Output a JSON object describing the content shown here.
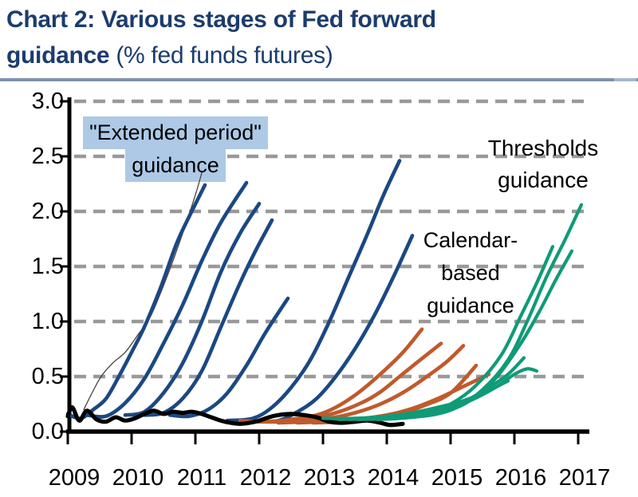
{
  "title": {
    "line1_bold": "Chart 2: Various stages of Fed forward",
    "line2_bold": "guidance",
    "line2_regular": " (% fed funds futures)"
  },
  "annotations": {
    "extended": {
      "line1": "\"Extended period\"",
      "line2": "guidance"
    },
    "thresholds": {
      "line1": "Thresholds",
      "line2": "guidance"
    },
    "calendar": {
      "line1": "Calendar-",
      "line2": "based",
      "line3": "guidance"
    }
  },
  "colors": {
    "title_blue": "#1b3c6d",
    "underline": "#7e91ad",
    "highlight": "#adc9e6",
    "grid": "#999999",
    "axis": "#000000",
    "extended_navy": "#1b4883",
    "calendar_orange": "#c05a2b",
    "thresholds_teal": "#0f9b77",
    "actual_black": "#000000"
  },
  "chart_data": {
    "type": "line",
    "title": "Chart 2: Various stages of Fed forward guidance",
    "unit": "% fed funds futures",
    "xlabel": "",
    "ylabel": "",
    "xlim": [
      2009,
      2017.15
    ],
    "ylim": [
      0.0,
      3.0
    ],
    "grid": "horizontal-dashed",
    "legend_position": "none",
    "x_ticks": [
      "2009",
      "2010",
      "2011",
      "2012",
      "2013",
      "2014",
      "2015",
      "2016",
      "2017"
    ],
    "x_tick_years": [
      2009,
      2010,
      2011,
      2012,
      2013,
      2014,
      2015,
      2016,
      2017
    ],
    "y_ticks": [
      "3.0",
      "2.5",
      "2.0",
      "1.5",
      "1.0",
      "0.5",
      "0.0"
    ],
    "y_tick_values": [
      3.0,
      2.5,
      2.0,
      1.5,
      1.0,
      0.5,
      0.0
    ],
    "series": [
      {
        "name": "futures_2009_thin",
        "group": "extended-period",
        "color": "#4a4038",
        "width": 1.3,
        "points": [
          [
            2009.25,
            0.2
          ],
          [
            2009.5,
            0.48
          ],
          [
            2009.7,
            0.62
          ],
          [
            2009.9,
            0.72
          ],
          [
            2010.1,
            0.88
          ],
          [
            2010.3,
            1.05
          ],
          [
            2010.55,
            1.4
          ],
          [
            2010.8,
            1.8
          ],
          [
            2011.0,
            2.15
          ],
          [
            2011.1,
            2.35
          ]
        ]
      },
      {
        "name": "futures_extended_1",
        "group": "extended-period",
        "color": "#1b4883",
        "width": 4.6,
        "points": [
          [
            2009.0,
            0.16
          ],
          [
            2009.2,
            0.12
          ],
          [
            2009.4,
            0.2
          ],
          [
            2009.6,
            0.3
          ],
          [
            2009.8,
            0.5
          ],
          [
            2010.0,
            0.72
          ],
          [
            2010.2,
            0.95
          ],
          [
            2010.45,
            1.3
          ],
          [
            2010.7,
            1.7
          ],
          [
            2010.9,
            1.95
          ],
          [
            2011.15,
            2.24
          ]
        ]
      },
      {
        "name": "futures_extended_2",
        "group": "extended-period",
        "color": "#1b4883",
        "width": 4.6,
        "points": [
          [
            2009.3,
            0.15
          ],
          [
            2009.6,
            0.14
          ],
          [
            2009.9,
            0.26
          ],
          [
            2010.2,
            0.48
          ],
          [
            2010.5,
            0.8
          ],
          [
            2010.8,
            1.15
          ],
          [
            2011.1,
            1.55
          ],
          [
            2011.4,
            1.9
          ],
          [
            2011.8,
            2.26
          ]
        ]
      },
      {
        "name": "futures_extended_3",
        "group": "extended-period",
        "color": "#1b4883",
        "width": 4.6,
        "points": [
          [
            2009.9,
            0.15
          ],
          [
            2010.2,
            0.18
          ],
          [
            2010.5,
            0.35
          ],
          [
            2010.8,
            0.62
          ],
          [
            2011.1,
            1.0
          ],
          [
            2011.4,
            1.45
          ],
          [
            2011.7,
            1.8
          ],
          [
            2012.0,
            2.07
          ]
        ]
      },
      {
        "name": "futures_extended_4",
        "group": "extended-period",
        "color": "#1b4883",
        "width": 4.6,
        "points": [
          [
            2010.2,
            0.15
          ],
          [
            2010.5,
            0.17
          ],
          [
            2010.8,
            0.3
          ],
          [
            2011.1,
            0.55
          ],
          [
            2011.4,
            0.95
          ],
          [
            2011.7,
            1.35
          ],
          [
            2011.95,
            1.65
          ],
          [
            2012.2,
            1.92
          ]
        ]
      },
      {
        "name": "futures_extended_5",
        "group": "extended-period",
        "color": "#1b4883",
        "width": 4.6,
        "points": [
          [
            2010.6,
            0.15
          ],
          [
            2010.9,
            0.14
          ],
          [
            2011.2,
            0.2
          ],
          [
            2011.5,
            0.35
          ],
          [
            2011.8,
            0.6
          ],
          [
            2012.1,
            0.9
          ],
          [
            2012.45,
            1.21
          ]
        ]
      },
      {
        "name": "futures_extended_6",
        "group": "extended-period",
        "color": "#1b4883",
        "width": 4.6,
        "points": [
          [
            2011.5,
            0.1
          ],
          [
            2011.9,
            0.12
          ],
          [
            2012.2,
            0.22
          ],
          [
            2012.5,
            0.4
          ],
          [
            2012.8,
            0.65
          ],
          [
            2013.1,
            1.0
          ],
          [
            2013.4,
            1.4
          ],
          [
            2013.7,
            1.8
          ],
          [
            2013.95,
            2.15
          ],
          [
            2014.2,
            2.46
          ]
        ]
      },
      {
        "name": "futures_extended_7",
        "group": "extended-period",
        "color": "#1b4883",
        "width": 4.6,
        "points": [
          [
            2011.95,
            0.09
          ],
          [
            2012.3,
            0.1
          ],
          [
            2012.6,
            0.18
          ],
          [
            2012.9,
            0.3
          ],
          [
            2013.2,
            0.5
          ],
          [
            2013.5,
            0.75
          ],
          [
            2013.8,
            1.05
          ],
          [
            2014.1,
            1.4
          ],
          [
            2014.4,
            1.78
          ]
        ]
      },
      {
        "name": "futures_calendar_1",
        "group": "calendar-based",
        "color": "#c05a2b",
        "width": 4.6,
        "points": [
          [
            2011.7,
            0.1
          ],
          [
            2012.1,
            0.09
          ],
          [
            2012.5,
            0.11
          ],
          [
            2012.9,
            0.15
          ],
          [
            2013.2,
            0.22
          ],
          [
            2013.5,
            0.33
          ],
          [
            2013.8,
            0.47
          ],
          [
            2014.1,
            0.63
          ],
          [
            2014.3,
            0.75
          ],
          [
            2014.55,
            0.93
          ]
        ]
      },
      {
        "name": "futures_calendar_2",
        "group": "calendar-based",
        "color": "#c05a2b",
        "width": 4.6,
        "points": [
          [
            2012.0,
            0.09
          ],
          [
            2012.4,
            0.09
          ],
          [
            2012.8,
            0.12
          ],
          [
            2013.2,
            0.17
          ],
          [
            2013.6,
            0.26
          ],
          [
            2013.9,
            0.36
          ],
          [
            2014.2,
            0.5
          ],
          [
            2014.5,
            0.64
          ],
          [
            2014.85,
            0.8
          ]
        ]
      },
      {
        "name": "futures_calendar_3",
        "group": "calendar-based",
        "color": "#c05a2b",
        "width": 4.6,
        "points": [
          [
            2012.3,
            0.08
          ],
          [
            2012.7,
            0.09
          ],
          [
            2013.1,
            0.12
          ],
          [
            2013.5,
            0.17
          ],
          [
            2013.9,
            0.25
          ],
          [
            2014.3,
            0.37
          ],
          [
            2014.7,
            0.53
          ],
          [
            2014.95,
            0.64
          ],
          [
            2015.2,
            0.78
          ]
        ]
      },
      {
        "name": "futures_calendar_4",
        "group": "calendar-based",
        "color": "#c05a2b",
        "width": 4.6,
        "points": [
          [
            2012.6,
            0.08
          ],
          [
            2013.0,
            0.09
          ],
          [
            2013.5,
            0.11
          ],
          [
            2014.0,
            0.15
          ],
          [
            2014.4,
            0.21
          ],
          [
            2014.8,
            0.3
          ],
          [
            2015.2,
            0.41
          ],
          [
            2015.6,
            0.52
          ]
        ]
      },
      {
        "name": "futures_calendar_5",
        "group": "calendar-based",
        "color": "#c05a2b",
        "width": 4.6,
        "points": [
          [
            2012.85,
            0.08
          ],
          [
            2013.3,
            0.09
          ],
          [
            2013.8,
            0.12
          ],
          [
            2014.2,
            0.16
          ],
          [
            2014.6,
            0.24
          ],
          [
            2015.0,
            0.35
          ],
          [
            2015.4,
            0.6
          ]
        ]
      },
      {
        "name": "actual_fed_funds",
        "group": "actual",
        "color": "#000000",
        "width": 5.2,
        "points": [
          [
            2009.0,
            0.14
          ],
          [
            2009.07,
            0.22
          ],
          [
            2009.18,
            0.1
          ],
          [
            2009.3,
            0.19
          ],
          [
            2009.45,
            0.11
          ],
          [
            2009.6,
            0.09
          ],
          [
            2009.75,
            0.13
          ],
          [
            2009.9,
            0.1
          ],
          [
            2010.05,
            0.12
          ],
          [
            2010.2,
            0.16
          ],
          [
            2010.35,
            0.19
          ],
          [
            2010.5,
            0.16
          ],
          [
            2010.65,
            0.18
          ],
          [
            2010.8,
            0.17
          ],
          [
            2010.95,
            0.18
          ],
          [
            2011.1,
            0.16
          ],
          [
            2011.25,
            0.13
          ],
          [
            2011.4,
            0.1
          ],
          [
            2011.55,
            0.08
          ],
          [
            2011.7,
            0.07
          ],
          [
            2011.85,
            0.08
          ],
          [
            2012.0,
            0.1
          ],
          [
            2012.15,
            0.13
          ],
          [
            2012.3,
            0.15
          ],
          [
            2012.5,
            0.16
          ],
          [
            2012.7,
            0.15
          ],
          [
            2012.9,
            0.13
          ],
          [
            2013.1,
            0.09
          ],
          [
            2013.3,
            0.08
          ],
          [
            2013.5,
            0.09
          ],
          [
            2013.7,
            0.1
          ],
          [
            2013.9,
            0.08
          ],
          [
            2014.05,
            0.06
          ],
          [
            2014.25,
            0.07
          ]
        ]
      },
      {
        "name": "futures_thresholds_1",
        "group": "thresholds",
        "color": "#0f9b77",
        "width": 4.2,
        "points": [
          [
            2013.0,
            0.12
          ],
          [
            2013.5,
            0.12
          ],
          [
            2014.0,
            0.14
          ],
          [
            2014.4,
            0.17
          ],
          [
            2014.8,
            0.22
          ],
          [
            2015.2,
            0.28
          ],
          [
            2015.55,
            0.36
          ],
          [
            2015.9,
            0.46
          ]
        ]
      },
      {
        "name": "futures_thresholds_2",
        "group": "thresholds",
        "color": "#0f9b77",
        "width": 4.2,
        "points": [
          [
            2013.25,
            0.11
          ],
          [
            2013.8,
            0.12
          ],
          [
            2014.3,
            0.14
          ],
          [
            2014.8,
            0.19
          ],
          [
            2015.2,
            0.27
          ],
          [
            2015.6,
            0.4
          ],
          [
            2015.9,
            0.52
          ],
          [
            2016.15,
            0.67
          ]
        ]
      },
      {
        "name": "futures_thresholds_3",
        "group": "thresholds",
        "color": "#0f9b77",
        "width": 4.2,
        "points": [
          [
            2013.4,
            0.11
          ],
          [
            2013.9,
            0.12
          ],
          [
            2014.4,
            0.15
          ],
          [
            2014.9,
            0.2
          ],
          [
            2015.3,
            0.28
          ],
          [
            2015.7,
            0.4
          ],
          [
            2016.0,
            0.52
          ],
          [
            2016.2,
            0.57
          ],
          [
            2016.35,
            0.55
          ]
        ]
      },
      {
        "name": "futures_thresholds_4",
        "group": "thresholds",
        "color": "#0f9b77",
        "width": 4.2,
        "points": [
          [
            2013.55,
            0.11
          ],
          [
            2014.1,
            0.12
          ],
          [
            2014.6,
            0.16
          ],
          [
            2015.0,
            0.25
          ],
          [
            2015.4,
            0.42
          ],
          [
            2015.8,
            0.7
          ],
          [
            2016.1,
            1.05
          ],
          [
            2016.35,
            1.35
          ],
          [
            2016.6,
            1.68
          ]
        ]
      },
      {
        "name": "futures_thresholds_5",
        "group": "thresholds",
        "color": "#0f9b77",
        "width": 4.2,
        "points": [
          [
            2013.85,
            0.11
          ],
          [
            2014.4,
            0.13
          ],
          [
            2014.9,
            0.18
          ],
          [
            2015.3,
            0.28
          ],
          [
            2015.7,
            0.48
          ],
          [
            2016.1,
            0.8
          ],
          [
            2016.4,
            1.1
          ],
          [
            2016.65,
            1.38
          ],
          [
            2016.9,
            1.64
          ]
        ]
      },
      {
        "name": "futures_thresholds_6",
        "group": "thresholds",
        "color": "#0f9b77",
        "width": 4.2,
        "points": [
          [
            2014.15,
            0.12
          ],
          [
            2014.7,
            0.15
          ],
          [
            2015.1,
            0.22
          ],
          [
            2015.5,
            0.38
          ],
          [
            2015.9,
            0.65
          ],
          [
            2016.2,
            1.0
          ],
          [
            2016.5,
            1.4
          ],
          [
            2016.8,
            1.75
          ],
          [
            2017.05,
            2.06
          ]
        ]
      }
    ]
  }
}
